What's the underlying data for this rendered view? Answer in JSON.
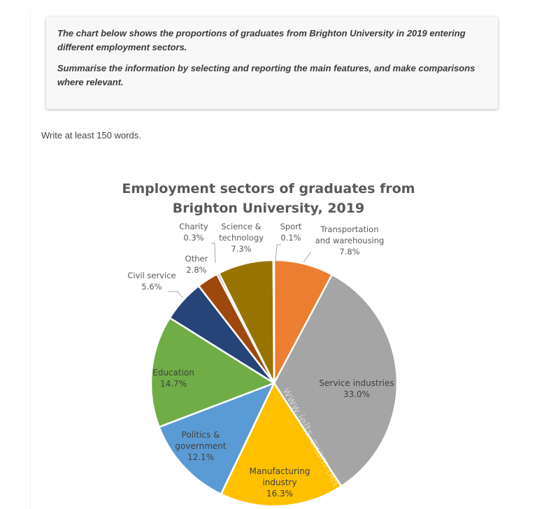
{
  "task": {
    "prompt": "The chart below shows the proportions of graduates from Brighton University in 2019 entering different employment sectors.",
    "instruction": "Summarise the information by selecting and reporting the main features, and make comparisons where relevant.",
    "word_count": "Write at least 150 words."
  },
  "chart_data": {
    "type": "pie",
    "title": "Employment sectors of graduates from Brighton University, 2019",
    "title_lines": [
      "Employment sectors of graduates from",
      "Brighton University, 2019"
    ],
    "unit": "%",
    "start_angle_deg": 0,
    "direction": "clockwise",
    "categories": [
      "Transportation and warehousing",
      "Service industries",
      "Manufacturing industry",
      "Politics & government",
      "Education",
      "Civil service",
      "Other",
      "Charity",
      "Science & technology",
      "Sport"
    ],
    "values": [
      7.8,
      33.0,
      16.3,
      12.1,
      14.7,
      5.6,
      2.8,
      0.3,
      7.3,
      0.1
    ],
    "labels": [
      "7.8%",
      "33.0%",
      "16.3%",
      "12.1%",
      "14.7%",
      "5.6%",
      "2.8%",
      "0.3%",
      "7.3%",
      "0.1%"
    ],
    "colors": [
      "#ED7D31",
      "#A5A5A5",
      "#FFC000",
      "#5B9BD5",
      "#70AD47",
      "#264478",
      "#9E480E",
      "#636363",
      "#997300",
      "#255E91"
    ],
    "legend": "none (data labels)",
    "watermark": "www.ielts-exam.net"
  }
}
